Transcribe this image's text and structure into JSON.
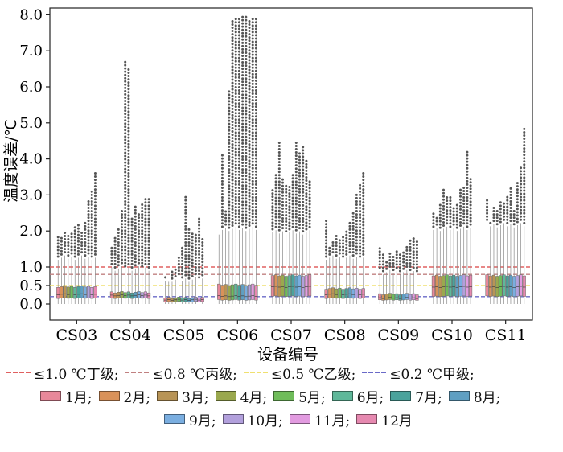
{
  "chart_data": {
    "type": "box",
    "ylabel": "温度误差/℃",
    "xlabel": "设备编号",
    "categories": [
      "CS03",
      "CS04",
      "CS05",
      "CS06",
      "CS07",
      "CS08",
      "CS09",
      "CS10",
      "CS11"
    ],
    "yticks": [
      "0.0",
      "0.5",
      "1.0",
      "2.0",
      "3.0",
      "4.0",
      "5.0",
      "6.0",
      "7.0",
      "8.0"
    ],
    "ylim": [
      0,
      8.0
    ],
    "y_scale": "piecewise: 0-1.0 stretched, 1.0-8.0 linear",
    "months": [
      "1月",
      "2月",
      "3月",
      "4月",
      "5月",
      "6月",
      "7月",
      "8月",
      "9月",
      "10月",
      "11月",
      "12月"
    ],
    "month_colors": [
      "#e8889a",
      "#d9925a",
      "#b89456",
      "#9aa84e",
      "#6fbc5a",
      "#5fb89a",
      "#4aa39c",
      "#5f9fc2",
      "#7aaee0",
      "#b2a0dc",
      "#e29be0",
      "#e689b0"
    ],
    "thresholds": [
      {
        "value": 1.0,
        "label": "≤1.0 ℃丁级;",
        "color": "#e06060"
      },
      {
        "value": 0.8,
        "label": "≤0.8 ℃丙级;",
        "color": "#c08080"
      },
      {
        "value": 0.5,
        "label": "≤0.5 ℃乙级;",
        "color": "#f0e070"
      },
      {
        "value": 0.2,
        "label": "≤0.2 ℃甲级;",
        "color": "#6a6ac8"
      }
    ],
    "series_stats": [
      {
        "device": "CS03",
        "q1": 0.15,
        "median": 0.25,
        "q3": 0.45,
        "whisker": 1.2,
        "outlier_max": [
          1.9,
          1.8,
          2.0,
          1.9,
          2.0,
          2.1,
          2.2,
          2.0,
          2.3,
          2.9,
          3.1,
          3.6
        ]
      },
      {
        "device": "CS04",
        "q1": 0.15,
        "median": 0.22,
        "q3": 0.3,
        "whisker": 0.9,
        "outlier_max": [
          1.6,
          1.8,
          2.1,
          2.6,
          6.7,
          6.5,
          2.4,
          2.7,
          2.5,
          2.8,
          2.9,
          2.9
        ]
      },
      {
        "device": "CS05",
        "q1": 0.05,
        "median": 0.1,
        "q3": 0.15,
        "whisker": 0.6,
        "outlier_max": [
          0.8,
          0.6,
          0.9,
          1.0,
          1.3,
          1.6,
          3.0,
          2.1,
          2.0,
          1.9,
          2.4,
          1.8
        ]
      },
      {
        "device": "CS06",
        "q1": 0.1,
        "median": 0.2,
        "q3": 0.5,
        "whisker": 2.0,
        "outlier_max": [
          1.9,
          4.1,
          2.6,
          5.9,
          7.9,
          7.9,
          7.9,
          8.0,
          8.0,
          7.9,
          7.9,
          7.9
        ]
      },
      {
        "device": "CS07",
        "q1": 0.2,
        "median": 0.45,
        "q3": 0.75,
        "whisker": 1.9,
        "outlier_max": [
          3.2,
          3.6,
          4.5,
          3.5,
          3.3,
          3.3,
          3.6,
          4.5,
          4.2,
          4.4,
          4.0,
          3.4
        ]
      },
      {
        "device": "CS08",
        "q1": 0.15,
        "median": 0.25,
        "q3": 0.4,
        "whisker": 1.2,
        "outlier_max": [
          2.3,
          1.6,
          1.7,
          1.9,
          1.8,
          1.9,
          2.0,
          2.3,
          2.5,
          3.0,
          3.3,
          3.6
        ]
      },
      {
        "device": "CS09",
        "q1": 0.1,
        "median": 0.15,
        "q3": 0.25,
        "whisker": 0.8,
        "outlier_max": [
          1.6,
          1.4,
          1.2,
          1.4,
          1.3,
          1.5,
          1.4,
          1.4,
          1.6,
          1.8,
          1.8,
          1.7
        ]
      },
      {
        "device": "CS10",
        "q1": 0.2,
        "median": 0.45,
        "q3": 0.75,
        "whisker": 2.0,
        "outlier_max": [
          2.5,
          2.4,
          2.8,
          3.2,
          3.0,
          3.0,
          2.7,
          2.8,
          3.2,
          3.2,
          4.2,
          3.5
        ]
      },
      {
        "device": "CS11",
        "q1": 0.2,
        "median": 0.45,
        "q3": 0.75,
        "whisker": 2.1,
        "outlier_max": [
          2.9,
          2.3,
          2.7,
          2.6,
          2.8,
          2.8,
          3.0,
          3.2,
          2.6,
          3.4,
          3.8,
          4.9
        ]
      }
    ]
  },
  "legend": {
    "thresholds": [
      "≤1.0 ℃丁级;",
      "≤0.8 ℃丙级;",
      "≤0.5 ℃乙级;",
      "≤0.2 ℃甲级;"
    ],
    "months": [
      "1月;",
      "2月;",
      "3月;",
      "4月;",
      "5月;",
      "6月;",
      "7月;",
      "8月;",
      "9月;",
      "10月;",
      "11月;",
      "12月"
    ]
  }
}
